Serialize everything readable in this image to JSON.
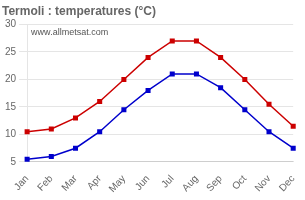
{
  "chart_data": {
    "type": "line",
    "title": "Termoli : temperatures (°C)",
    "categories": [
      "Jan",
      "Feb",
      "Mar",
      "Apr",
      "May",
      "Jun",
      "Jul",
      "Aug",
      "Sep",
      "Oct",
      "Nov",
      "Dec"
    ],
    "series": [
      {
        "color": "#cc0000",
        "values": [
          10.5,
          11.0,
          13.0,
          16.0,
          20.0,
          24.0,
          27.0,
          27.0,
          24.0,
          20.0,
          15.5,
          11.5
        ]
      },
      {
        "color": "#0000cc",
        "values": [
          5.5,
          6.0,
          7.5,
          10.5,
          14.5,
          18.0,
          21.0,
          21.0,
          18.5,
          14.5,
          10.5,
          7.5
        ]
      }
    ],
    "marker": "square",
    "ylim": [
      5,
      30
    ],
    "yticks": [
      5,
      10,
      15,
      20,
      25,
      30
    ],
    "grid": "y",
    "annotation": "www.allmetsat.com"
  }
}
